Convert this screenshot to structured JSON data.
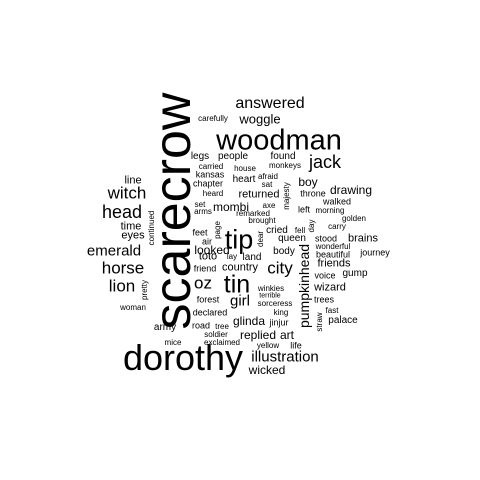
{
  "cloud": {
    "text_color": "#000000",
    "background": "#ffffff",
    "words": [
      {
        "text": "scarecrow",
        "orientation": "vertical"
      },
      {
        "text": "dorothy",
        "orientation": "horizontal"
      },
      {
        "text": "woodman",
        "orientation": "horizontal"
      },
      {
        "text": "tip",
        "orientation": "horizontal"
      },
      {
        "text": "tin",
        "orientation": "horizontal"
      },
      {
        "text": "answered",
        "orientation": "horizontal"
      },
      {
        "text": "woggle",
        "orientation": "horizontal"
      },
      {
        "text": "jack",
        "orientation": "horizontal"
      },
      {
        "text": "head",
        "orientation": "horizontal"
      },
      {
        "text": "witch",
        "orientation": "horizontal"
      },
      {
        "text": "horse",
        "orientation": "horizontal"
      },
      {
        "text": "emerald",
        "orientation": "horizontal"
      },
      {
        "text": "lion",
        "orientation": "horizontal"
      },
      {
        "text": "oz",
        "orientation": "horizontal"
      },
      {
        "text": "city",
        "orientation": "horizontal"
      },
      {
        "text": "girl",
        "orientation": "horizontal"
      },
      {
        "text": "pumpkinhead",
        "orientation": "vertical"
      },
      {
        "text": "illustration",
        "orientation": "horizontal"
      },
      {
        "text": "wicked",
        "orientation": "horizontal"
      },
      {
        "text": "glinda",
        "orientation": "horizontal"
      },
      {
        "text": "replied",
        "orientation": "horizontal"
      },
      {
        "text": "art",
        "orientation": "horizontal"
      },
      {
        "text": "boy",
        "orientation": "horizontal"
      },
      {
        "text": "drawing",
        "orientation": "horizontal"
      },
      {
        "text": "mombi",
        "orientation": "horizontal"
      },
      {
        "text": "returned",
        "orientation": "horizontal"
      },
      {
        "text": "looked",
        "orientation": "horizontal"
      },
      {
        "text": "time",
        "orientation": "horizontal"
      },
      {
        "text": "eyes",
        "orientation": "horizontal"
      },
      {
        "text": "line",
        "orientation": "horizontal"
      },
      {
        "text": "toto",
        "orientation": "horizontal"
      },
      {
        "text": "heart",
        "orientation": "horizontal"
      },
      {
        "text": "people",
        "orientation": "horizontal"
      },
      {
        "text": "legs",
        "orientation": "horizontal"
      },
      {
        "text": "found",
        "orientation": "horizontal"
      },
      {
        "text": "queen",
        "orientation": "horizontal"
      },
      {
        "text": "brains",
        "orientation": "horizontal"
      },
      {
        "text": "stood",
        "orientation": "horizontal"
      },
      {
        "text": "friends",
        "orientation": "horizontal"
      },
      {
        "text": "wizard",
        "orientation": "horizontal"
      },
      {
        "text": "palace",
        "orientation": "horizontal"
      },
      {
        "text": "country",
        "orientation": "horizontal"
      },
      {
        "text": "cried",
        "orientation": "horizontal"
      },
      {
        "text": "body",
        "orientation": "horizontal"
      },
      {
        "text": "land",
        "orientation": "horizontal"
      },
      {
        "text": "gump",
        "orientation": "horizontal"
      },
      {
        "text": "voice",
        "orientation": "horizontal"
      },
      {
        "text": "carefully",
        "orientation": "horizontal"
      },
      {
        "text": "carried",
        "orientation": "horizontal"
      },
      {
        "text": "house",
        "orientation": "horizontal"
      },
      {
        "text": "monkeys",
        "orientation": "horizontal"
      },
      {
        "text": "kansas",
        "orientation": "horizontal"
      },
      {
        "text": "afraid",
        "orientation": "horizontal"
      },
      {
        "text": "chapter",
        "orientation": "horizontal"
      },
      {
        "text": "sat",
        "orientation": "horizontal"
      },
      {
        "text": "heard",
        "orientation": "horizontal"
      },
      {
        "text": "majesty",
        "orientation": "vertical"
      },
      {
        "text": "throne",
        "orientation": "horizontal"
      },
      {
        "text": "walked",
        "orientation": "horizontal"
      },
      {
        "text": "left",
        "orientation": "horizontal"
      },
      {
        "text": "morning",
        "orientation": "horizontal"
      },
      {
        "text": "set",
        "orientation": "horizontal"
      },
      {
        "text": "axe",
        "orientation": "horizontal"
      },
      {
        "text": "golden",
        "orientation": "horizontal"
      },
      {
        "text": "arms",
        "orientation": "horizontal"
      },
      {
        "text": "remarked",
        "orientation": "horizontal"
      },
      {
        "text": "brought",
        "orientation": "horizontal"
      },
      {
        "text": "day",
        "orientation": "vertical"
      },
      {
        "text": "carry",
        "orientation": "horizontal"
      },
      {
        "text": "feet",
        "orientation": "horizontal"
      },
      {
        "text": "page",
        "orientation": "vertical"
      },
      {
        "text": "dear",
        "orientation": "vertical"
      },
      {
        "text": "fell",
        "orientation": "horizontal"
      },
      {
        "text": "air",
        "orientation": "horizontal"
      },
      {
        "text": "wonderful",
        "orientation": "horizontal"
      },
      {
        "text": "beautiful",
        "orientation": "horizontal"
      },
      {
        "text": "journey",
        "orientation": "horizontal"
      },
      {
        "text": "lay",
        "orientation": "horizontal"
      },
      {
        "text": "friend",
        "orientation": "horizontal"
      },
      {
        "text": "continued",
        "orientation": "vertical"
      },
      {
        "text": "pretty",
        "orientation": "vertical"
      },
      {
        "text": "woman",
        "orientation": "horizontal"
      },
      {
        "text": "winkies",
        "orientation": "horizontal"
      },
      {
        "text": "terrible",
        "orientation": "horizontal"
      },
      {
        "text": "sorceress",
        "orientation": "horizontal"
      },
      {
        "text": "forest",
        "orientation": "horizontal"
      },
      {
        "text": "trees",
        "orientation": "horizontal"
      },
      {
        "text": "fast",
        "orientation": "horizontal"
      },
      {
        "text": "declared",
        "orientation": "horizontal"
      },
      {
        "text": "king",
        "orientation": "horizontal"
      },
      {
        "text": "straw",
        "orientation": "vertical"
      },
      {
        "text": "army",
        "orientation": "horizontal"
      },
      {
        "text": "road",
        "orientation": "horizontal"
      },
      {
        "text": "tree",
        "orientation": "horizontal"
      },
      {
        "text": "jinjur",
        "orientation": "horizontal"
      },
      {
        "text": "soldier",
        "orientation": "horizontal"
      },
      {
        "text": "exclaimed",
        "orientation": "horizontal"
      },
      {
        "text": "mice",
        "orientation": "horizontal"
      },
      {
        "text": "yellow",
        "orientation": "horizontal"
      },
      {
        "text": "life",
        "orientation": "horizontal"
      }
    ]
  }
}
